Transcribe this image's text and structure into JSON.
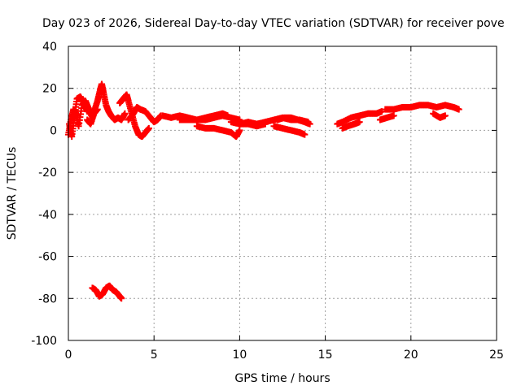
{
  "chart_data": {
    "type": "scatter",
    "title": "Day 023 of 2026, Sidereal Day-to-day VTEC variation (SDTVAR) for receiver pove",
    "xlabel": "GPS time / hours",
    "ylabel": "SDTVAR / TECUs",
    "xlim": [
      0,
      25
    ],
    "ylim": [
      -100,
      40
    ],
    "xticks": [
      0,
      5,
      10,
      15,
      20,
      25
    ],
    "yticks": [
      -100,
      -80,
      -60,
      -40,
      -20,
      0,
      20,
      40
    ],
    "grid": true,
    "marker": "plus",
    "color": "#ff0000",
    "series": [
      {
        "name": "SDTVAR",
        "segments": [
          {
            "x": [
              0.0,
              0.15,
              0.3,
              0.45,
              0.6,
              0.8,
              1.0,
              1.2,
              1.4
            ],
            "y": [
              -2,
              5,
              10,
              8,
              2,
              12,
              14,
              10,
              6
            ]
          },
          {
            "x": [
              0.05,
              0.2,
              0.35,
              0.5,
              0.7,
              0.9,
              1.1
            ],
            "y": [
              3,
              -3,
              6,
              15,
              16,
              13,
              9
            ]
          },
          {
            "x": [
              1.5,
              1.7,
              1.85,
              1.95,
              2.05,
              2.2,
              2.35,
              2.5,
              2.7,
              2.9,
              3.1,
              3.3
            ],
            "y": [
              9,
              14,
              19,
              22,
              18,
              12,
              9,
              7,
              5,
              6,
              5,
              8
            ]
          },
          {
            "x": [
              1.1,
              1.3,
              1.5,
              1.7
            ],
            "y": [
              5,
              3,
              8,
              10
            ]
          },
          {
            "x": [
              3.0,
              3.2,
              3.4,
              3.5,
              3.7,
              3.9,
              4.1,
              4.3,
              4.5,
              4.7
            ],
            "y": [
              13,
              15,
              17,
              14,
              8,
              2,
              -2,
              -3,
              -1,
              1
            ]
          },
          {
            "x": [
              3.5,
              3.8,
              4.0,
              4.2,
              4.5,
              4.8,
              5.0,
              5.2,
              5.4
            ],
            "y": [
              5,
              8,
              11,
              10,
              9,
              6,
              4,
              5,
              7
            ]
          },
          {
            "x": [
              5.5,
              6.0,
              6.5,
              7.0,
              7.5,
              8.0,
              8.5,
              9.0,
              9.5,
              10.0
            ],
            "y": [
              7,
              6,
              7,
              6,
              5,
              5,
              6,
              7,
              6,
              5
            ]
          },
          {
            "x": [
              6.5,
              7.0,
              7.5,
              8.0,
              8.5,
              9.0,
              9.3
            ],
            "y": [
              5,
              5,
              5,
              6,
              7,
              8,
              7
            ]
          },
          {
            "x": [
              7.5,
              8.0,
              8.5,
              9.0,
              9.5,
              9.8,
              10.0
            ],
            "y": [
              2,
              1,
              1,
              0,
              -1,
              -3,
              0
            ]
          },
          {
            "x": [
              10.0,
              10.5,
              11.0,
              11.5,
              12.0,
              12.5,
              13.0,
              13.5,
              14.0
            ],
            "y": [
              3,
              4,
              3,
              4,
              5,
              6,
              5,
              5,
              4
            ]
          },
          {
            "x": [
              9.5,
              10.0,
              10.5,
              11.0,
              11.5
            ],
            "y": [
              4,
              3,
              3,
              2,
              3
            ]
          },
          {
            "x": [
              12.0,
              12.5,
              13.0,
              13.5,
              13.8
            ],
            "y": [
              2,
              1,
              0,
              -1,
              -2
            ]
          },
          {
            "x": [
              12.2,
              12.6,
              13.0,
              13.4,
              13.8,
              14.1
            ],
            "y": [
              5,
              6,
              6,
              5,
              4,
              3
            ]
          },
          {
            "x": [
              15.7,
              16.0,
              16.5,
              17.0,
              17.5,
              18.0,
              18.3
            ],
            "y": [
              3,
              4,
              6,
              7,
              8,
              8,
              9
            ]
          },
          {
            "x": [
              16.0,
              16.3,
              16.7,
              17.0
            ],
            "y": [
              1,
              2,
              3,
              4
            ]
          },
          {
            "x": [
              18.5,
              19.0,
              19.5,
              20.0,
              20.5,
              21.0,
              21.5,
              22.0,
              22.5,
              22.8
            ],
            "y": [
              10,
              10,
              11,
              11,
              12,
              12,
              11,
              12,
              11,
              10
            ]
          },
          {
            "x": [
              18.2,
              18.6,
              19.0
            ],
            "y": [
              5,
              6,
              7
            ]
          },
          {
            "x": [
              21.3,
              21.7,
              22.0
            ],
            "y": [
              8,
              6,
              7
            ]
          },
          {
            "x": [
              1.4,
              1.6,
              1.8,
              2.0,
              2.2,
              2.4,
              2.6,
              2.8,
              3.0,
              3.1
            ],
            "y": [
              -75,
              -76,
              -79,
              -78,
              -75,
              -74,
              -76,
              -77,
              -79,
              -80
            ]
          }
        ]
      }
    ]
  }
}
